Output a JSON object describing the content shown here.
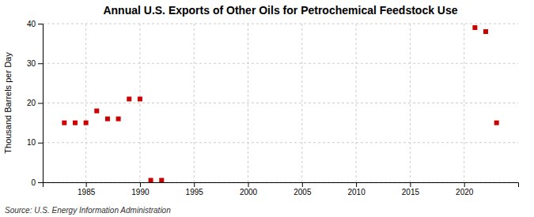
{
  "chart_data": {
    "type": "scatter",
    "title": "Annual U.S. Exports of Other Oils for Petrochemical Feedstock Use",
    "ylabel": "Thousand Barrels per Day",
    "source": "Source: U.S. Energy Information Administration",
    "x": [
      1983,
      1984,
      1985,
      1986,
      1987,
      1988,
      1989,
      1990,
      1991,
      1992,
      2021,
      2022,
      2023
    ],
    "values": [
      15.0,
      15.0,
      15.0,
      18.0,
      16.0,
      16.0,
      21.0,
      21.0,
      0.5,
      0.5,
      39.0,
      38.0,
      15.0
    ],
    "color": "#cc0000",
    "marker": "square",
    "xlim": [
      1981,
      2025
    ],
    "ylim": [
      0,
      40
    ],
    "xticks": [
      1985,
      1990,
      1995,
      2000,
      2005,
      2010,
      2015,
      2020
    ],
    "yticks": [
      0,
      10,
      20,
      30,
      40
    ],
    "grid": true
  }
}
